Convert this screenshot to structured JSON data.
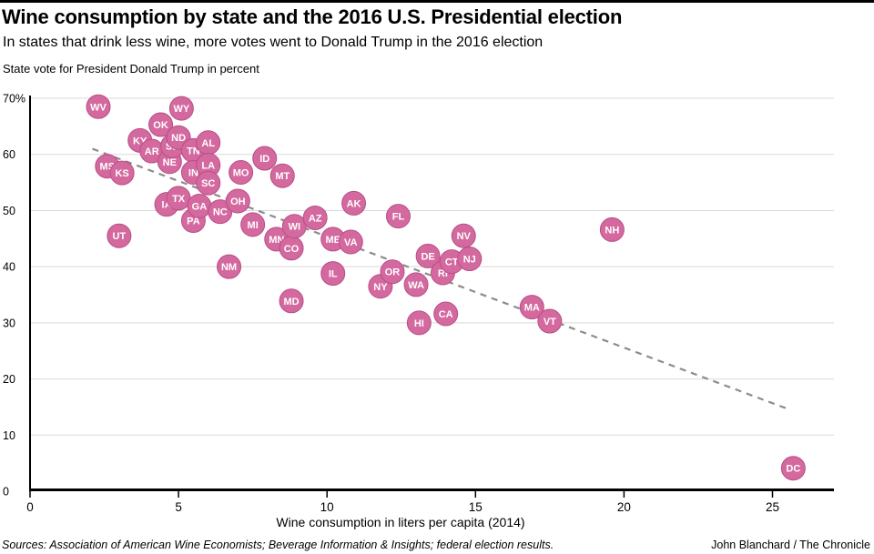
{
  "page": {
    "title": "Wine consumption by state and the 2016 U.S. Presidential election",
    "subtitle": "In states that drink less wine, more votes went to Donald Trump in the 2016 election",
    "axis_note": "State vote for President Donald Trump in percent",
    "footer_sources": "Sources: Association of American Wine Economists; Beverage Information & Insights; federal election results.",
    "footer_credit": "John Blanchard / The Chronicle"
  },
  "chart_data": {
    "type": "scatter",
    "title": "Wine consumption by state and the 2016 U.S. Presidential election",
    "xlabel": "Wine consumption in liters per capita (2014)",
    "ylabel": "State vote for President Donald Trump in percent",
    "xlim": [
      0,
      27
    ],
    "ylim": [
      0,
      70
    ],
    "x_ticks": [
      0,
      5,
      10,
      15,
      20,
      25
    ],
    "y_ticks": [
      0,
      10,
      20,
      30,
      40,
      50,
      60,
      70
    ],
    "y_tick_labels": [
      "0",
      "10",
      "20",
      "30",
      "40",
      "50",
      "60",
      "70%"
    ],
    "grid": true,
    "legend": "none",
    "point_color": "#d4699f",
    "point_stroke": "#b84e86",
    "point_label_color": "#ffffff",
    "trendline": {
      "style": "dashed",
      "color": "#8c8c8c",
      "x1": 2.1,
      "y1": 61.0,
      "x2": 25.6,
      "y2": 14.5
    },
    "points": [
      {
        "state": "WV",
        "wine": 2.3,
        "vote": 68.5
      },
      {
        "state": "MS",
        "wine": 2.6,
        "vote": 57.9
      },
      {
        "state": "UT",
        "wine": 3.0,
        "vote": 45.5
      },
      {
        "state": "KS",
        "wine": 3.1,
        "vote": 56.7
      },
      {
        "state": "KY",
        "wine": 3.7,
        "vote": 62.5
      },
      {
        "state": "AR",
        "wine": 4.1,
        "vote": 60.6
      },
      {
        "state": "OK",
        "wine": 4.4,
        "vote": 65.3
      },
      {
        "state": "IA",
        "wine": 4.6,
        "vote": 51.1
      },
      {
        "state": "NE",
        "wine": 4.7,
        "vote": 58.7
      },
      {
        "state": "SD",
        "wine": 4.8,
        "vote": 61.5
      },
      {
        "state": "TX",
        "wine": 5.0,
        "vote": 52.2
      },
      {
        "state": "ND",
        "wine": 5.0,
        "vote": 63.0
      },
      {
        "state": "WY",
        "wine": 5.1,
        "vote": 68.2
      },
      {
        "state": "TN",
        "wine": 5.5,
        "vote": 60.7
      },
      {
        "state": "IN",
        "wine": 5.5,
        "vote": 56.8
      },
      {
        "state": "PA",
        "wine": 5.5,
        "vote": 48.2
      },
      {
        "state": "GA",
        "wine": 5.7,
        "vote": 50.8
      },
      {
        "state": "AL",
        "wine": 6.0,
        "vote": 62.1
      },
      {
        "state": "LA",
        "wine": 6.0,
        "vote": 58.1
      },
      {
        "state": "SC",
        "wine": 6.0,
        "vote": 54.9
      },
      {
        "state": "NC",
        "wine": 6.4,
        "vote": 49.8
      },
      {
        "state": "NM",
        "wine": 6.7,
        "vote": 40.0
      },
      {
        "state": "OH",
        "wine": 7.0,
        "vote": 51.7
      },
      {
        "state": "MO",
        "wine": 7.1,
        "vote": 56.8
      },
      {
        "state": "MI",
        "wine": 7.5,
        "vote": 47.5
      },
      {
        "state": "ID",
        "wine": 7.9,
        "vote": 59.3
      },
      {
        "state": "MN",
        "wine": 8.3,
        "vote": 44.9
      },
      {
        "state": "MT",
        "wine": 8.5,
        "vote": 56.2
      },
      {
        "state": "CO",
        "wine": 8.8,
        "vote": 43.3
      },
      {
        "state": "MD",
        "wine": 8.8,
        "vote": 33.9
      },
      {
        "state": "WI",
        "wine": 8.9,
        "vote": 47.2
      },
      {
        "state": "AZ",
        "wine": 9.6,
        "vote": 48.7
      },
      {
        "state": "ME",
        "wine": 10.2,
        "vote": 44.9
      },
      {
        "state": "IL",
        "wine": 10.2,
        "vote": 38.8
      },
      {
        "state": "VA",
        "wine": 10.8,
        "vote": 44.4
      },
      {
        "state": "AK",
        "wine": 10.9,
        "vote": 51.3
      },
      {
        "state": "NY",
        "wine": 11.8,
        "vote": 36.5
      },
      {
        "state": "OR",
        "wine": 12.2,
        "vote": 39.1
      },
      {
        "state": "FL",
        "wine": 12.4,
        "vote": 49.0
      },
      {
        "state": "WA",
        "wine": 13.0,
        "vote": 36.8
      },
      {
        "state": "HI",
        "wine": 13.1,
        "vote": 30.0
      },
      {
        "state": "DE",
        "wine": 13.4,
        "vote": 41.9
      },
      {
        "state": "RI",
        "wine": 13.9,
        "vote": 38.9
      },
      {
        "state": "CA",
        "wine": 14.0,
        "vote": 31.6
      },
      {
        "state": "CT",
        "wine": 14.2,
        "vote": 40.9
      },
      {
        "state": "NV",
        "wine": 14.6,
        "vote": 45.5
      },
      {
        "state": "NJ",
        "wine": 14.8,
        "vote": 41.4
      },
      {
        "state": "MA",
        "wine": 16.9,
        "vote": 32.8
      },
      {
        "state": "VT",
        "wine": 17.5,
        "vote": 30.3
      },
      {
        "state": "NH",
        "wine": 19.6,
        "vote": 46.6
      },
      {
        "state": "DC",
        "wine": 25.7,
        "vote": 4.1
      }
    ]
  }
}
